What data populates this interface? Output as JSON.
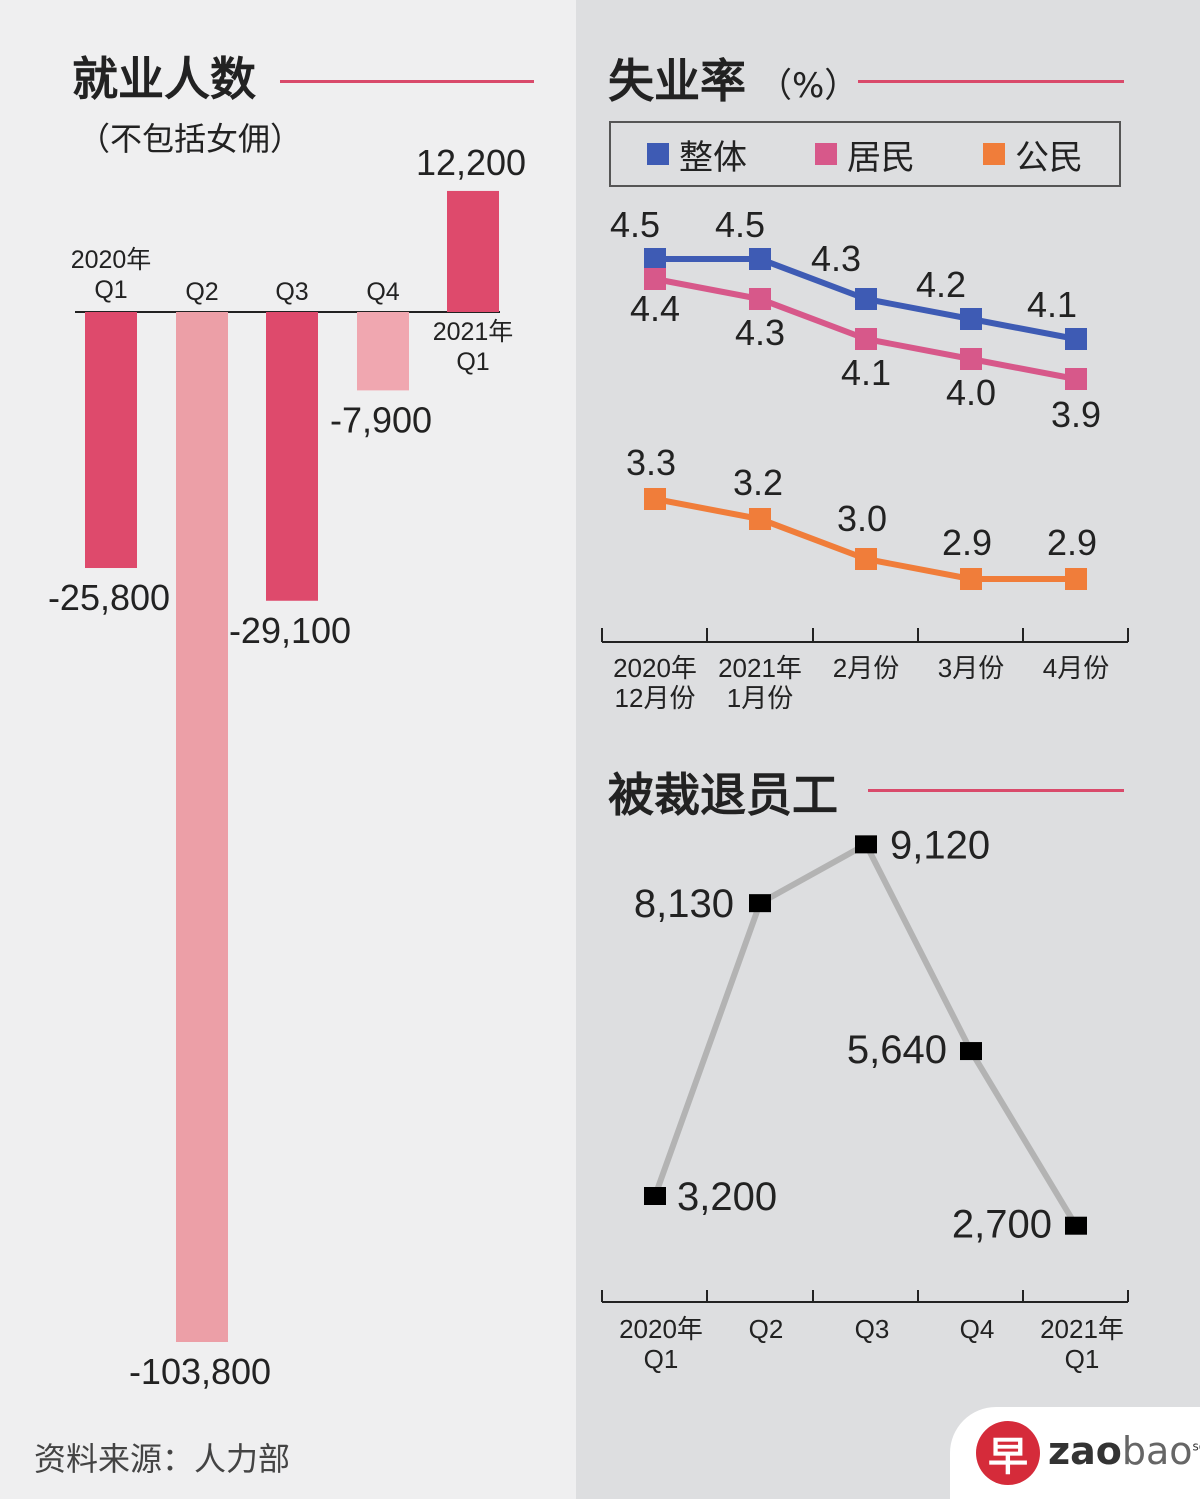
{
  "source_note": "资料来源：人力部",
  "logo": {
    "mark": "早",
    "brand_bold": "zao",
    "brand_light": "bao",
    "suffix": "sg"
  },
  "chart_data": [
    {
      "id": "employment",
      "type": "bar",
      "title": "就业人数",
      "subtitle": "（不包括女佣）",
      "categories": [
        "2020年\nQ1",
        "Q2",
        "Q3",
        "Q4",
        "2021年\nQ1"
      ],
      "values": [
        -25800,
        -103800,
        -29100,
        -7900,
        12200
      ],
      "value_labels": [
        "-25,800",
        "-103,800",
        "-29,100",
        "-7,900",
        "12,200"
      ],
      "bar_colors": [
        "#de4a6c",
        "#ec9fa7",
        "#de4a6c",
        "#f0a7b0",
        "#de4a6c"
      ],
      "ylim": [
        -103800,
        12200
      ],
      "grid": false
    },
    {
      "id": "unemployment",
      "type": "line",
      "title": "失业率",
      "unit": "（%）",
      "categories": [
        "2020年\n12月份",
        "2021年\n1月份",
        "2月份",
        "3月份",
        "4月份"
      ],
      "series": [
        {
          "name": "整体",
          "color": "#3e5bb4",
          "values": [
            4.5,
            4.5,
            4.3,
            4.2,
            4.1
          ],
          "labels": [
            "4.5",
            "4.5",
            "4.3",
            "4.2",
            "4.1"
          ]
        },
        {
          "name": "居民",
          "color": "#d7588a",
          "values": [
            4.4,
            4.3,
            4.1,
            4.0,
            3.9
          ],
          "labels": [
            "4.4",
            "4.3",
            "4.1",
            "4.0",
            "3.9"
          ]
        },
        {
          "name": "公民",
          "color": "#f07d3a",
          "values": [
            3.3,
            3.2,
            3.0,
            2.9,
            2.9
          ],
          "labels": [
            "3.3",
            "3.2",
            "3.0",
            "2.9",
            "2.9"
          ]
        }
      ],
      "ylim": [
        2.9,
        4.5
      ],
      "legend": "top",
      "grid": false
    },
    {
      "id": "retrenchment",
      "type": "line",
      "title": "被裁退员工",
      "categories": [
        "2020年\nQ1",
        "Q2",
        "Q3",
        "Q4",
        "2021年\nQ1"
      ],
      "series": [
        {
          "color": "#b3b3b3",
          "marker_color": "#000000",
          "values": [
            3200,
            8130,
            9120,
            5640,
            2700
          ],
          "labels": [
            "3,200",
            "8,130",
            "9,120",
            "5,640",
            "2,700"
          ]
        }
      ],
      "ylim": [
        2700,
        9120
      ],
      "grid": false
    }
  ]
}
